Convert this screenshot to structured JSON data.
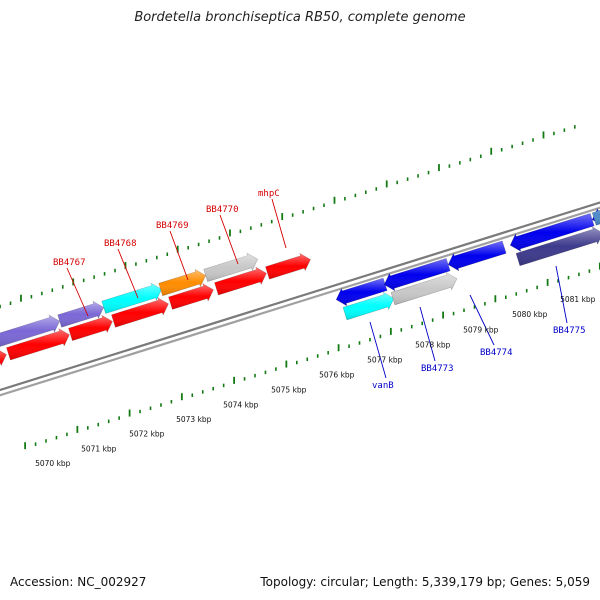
{
  "title": "Bordetella bronchiseptica RB50, complete genome",
  "footer": {
    "accession": "Accession: NC_002927",
    "stats": "Topology: circular; Length: 5,339,179 bp; Genes: 5,059"
  },
  "colors": {
    "tick": "#137a13",
    "backbone": "#8c8c8c",
    "red": "#ff0000",
    "cyan": "#00ffff",
    "purple": "#7b68d6",
    "orange": "#ff8c00",
    "gray": "#c8c8c8",
    "blue": "#0000ee",
    "navy": "#3d3a8c",
    "steel": "#4e8ac8",
    "label_red": "#d40000",
    "label_blue": "#0000c8"
  },
  "scale_labels": [
    {
      "text": "5070 kbp"
    },
    {
      "text": "5071 kbp"
    },
    {
      "text": "5072 kbp"
    },
    {
      "text": "5073 kbp"
    },
    {
      "text": "5074 kbp"
    },
    {
      "text": "5075 kbp"
    },
    {
      "text": "5076 kbp"
    },
    {
      "text": "5077 kbp"
    },
    {
      "text": "5078 kbp"
    },
    {
      "text": "5079 kbp"
    },
    {
      "text": "5080 kbp"
    },
    {
      "text": "5081 kbp"
    }
  ],
  "gene_labels": [
    {
      "text": "BB4767",
      "color": "label_red"
    },
    {
      "text": "BB4768",
      "color": "label_red"
    },
    {
      "text": "BB4769",
      "color": "label_red"
    },
    {
      "text": "BB4770",
      "color": "label_red"
    },
    {
      "text": "mhpC",
      "color": "label_red"
    },
    {
      "text": "vanB",
      "color": "label_blue"
    },
    {
      "text": "BB4773",
      "color": "label_blue"
    },
    {
      "text": "BB4774",
      "color": "label_blue"
    },
    {
      "text": "BB4775",
      "color": "label_blue"
    }
  ]
}
